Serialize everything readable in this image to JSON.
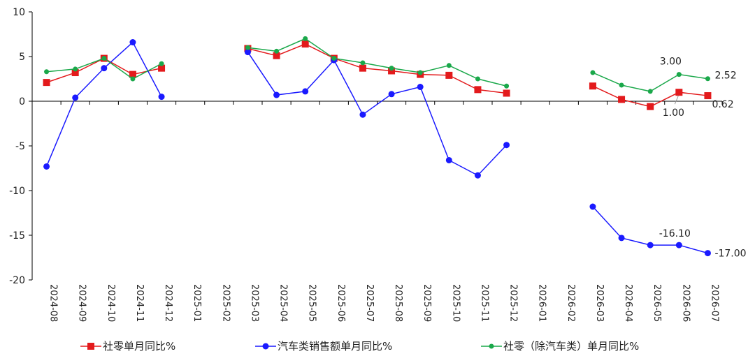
{
  "chart_data": {
    "type": "line",
    "categories": [
      "2024-08",
      "2024-09",
      "2024-10",
      "2024-11",
      "2024-12",
      "2025-01",
      "2025-02",
      "2025-03",
      "2025-04",
      "2025-05",
      "2025-06",
      "2025-07",
      "2025-08",
      "2025-09",
      "2025-10",
      "2025-11",
      "2025-12",
      "2026-01",
      "2026-02",
      "2026-03",
      "2026-04",
      "2026-05",
      "2026-06",
      "2026-07"
    ],
    "ylim": [
      -20,
      10
    ],
    "yticks": [
      10,
      5,
      0,
      -5,
      -10,
      -15,
      -20
    ],
    "grid": false,
    "legend_position": "bottom",
    "series": [
      {
        "name": "社零单月同比%",
        "color": "#e31a1c",
        "marker": "square",
        "values": [
          2.1,
          3.2,
          4.8,
          3.0,
          3.7,
          null,
          null,
          5.9,
          5.1,
          6.4,
          4.8,
          3.7,
          3.4,
          3.0,
          2.9,
          1.3,
          0.9,
          null,
          null,
          1.7,
          0.2,
          -0.6,
          1.0,
          0.62
        ]
      },
      {
        "name": "汽车类销售额单月同比%",
        "color": "#1a1aff",
        "marker": "circle",
        "values": [
          -7.3,
          0.4,
          3.7,
          6.6,
          0.5,
          null,
          null,
          5.5,
          0.7,
          1.1,
          4.6,
          -1.5,
          0.8,
          1.6,
          -6.6,
          -8.3,
          -4.9,
          null,
          null,
          -11.8,
          -15.3,
          -16.1,
          -16.1,
          -17.0
        ]
      },
      {
        "name": "社零（除汽车类）单月同比%",
        "color": "#1aa84a",
        "marker": "circle",
        "values": [
          3.3,
          3.6,
          4.8,
          2.5,
          4.2,
          null,
          null,
          6.0,
          5.6,
          7.0,
          4.8,
          4.3,
          3.7,
          3.2,
          4.0,
          2.5,
          1.7,
          null,
          null,
          3.2,
          1.8,
          1.1,
          3.0,
          2.52
        ]
      }
    ],
    "annotations": [
      {
        "text": "3.00",
        "series": 2,
        "index": 22
      },
      {
        "text": "2.52",
        "series": 2,
        "index": 23
      },
      {
        "text": "1.00",
        "series": 0,
        "index": 22
      },
      {
        "text": "0.62",
        "series": 0,
        "index": 23
      },
      {
        "text": "-16.10",
        "series": 1,
        "index": 22
      },
      {
        "text": "-17.00",
        "series": 1,
        "index": 23
      }
    ]
  }
}
